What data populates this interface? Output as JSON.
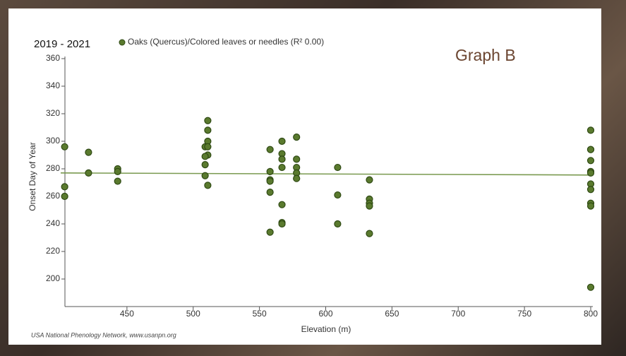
{
  "chart_data": {
    "type": "scatter",
    "title": "2019 - 2021",
    "annotation": "Graph B",
    "x_label": "Elevation (m)",
    "y_label": "Onset Day of Year",
    "source": "USA National Phenology Network, www.usanpn.org",
    "xlim": [
      400,
      800
    ],
    "xticks": [
      450,
      500,
      550,
      600,
      650,
      700,
      750,
      800
    ],
    "ylim": [
      180,
      360
    ],
    "yticks": [
      200,
      220,
      240,
      260,
      280,
      300,
      320,
      340,
      360
    ],
    "series": [
      {
        "name": "Oaks (Quercus)/Colored leaves or needles (R² 0.00)",
        "color": "#5a7a2e",
        "x": [
          403,
          403,
          403,
          421,
          421,
          443,
          443,
          443,
          511,
          511,
          511,
          509,
          511,
          511,
          509,
          509,
          509,
          511,
          558,
          558,
          558,
          558,
          558,
          558,
          567,
          567,
          567,
          567,
          567,
          567,
          567,
          578,
          578,
          578,
          578,
          578,
          609,
          609,
          609,
          633,
          633,
          633,
          633,
          633,
          800,
          800,
          800,
          800,
          800,
          800,
          800,
          800,
          800,
          800,
          800
        ],
        "values": [
          296,
          267,
          260,
          292,
          277,
          280,
          278,
          271,
          315,
          308,
          300,
          296,
          296,
          290,
          289,
          283,
          275,
          268,
          294,
          278,
          272,
          271,
          263,
          234,
          300,
          291,
          287,
          281,
          254,
          241,
          240,
          303,
          287,
          281,
          277,
          273,
          281,
          261,
          240,
          272,
          258,
          255,
          253,
          233,
          308,
          294,
          294,
          286,
          278,
          277,
          269,
          265,
          255,
          253,
          194
        ]
      }
    ],
    "trendline": {
      "color": "#7a9a50",
      "x": [
        400,
        800
      ],
      "values": [
        277,
        275.5
      ]
    }
  }
}
